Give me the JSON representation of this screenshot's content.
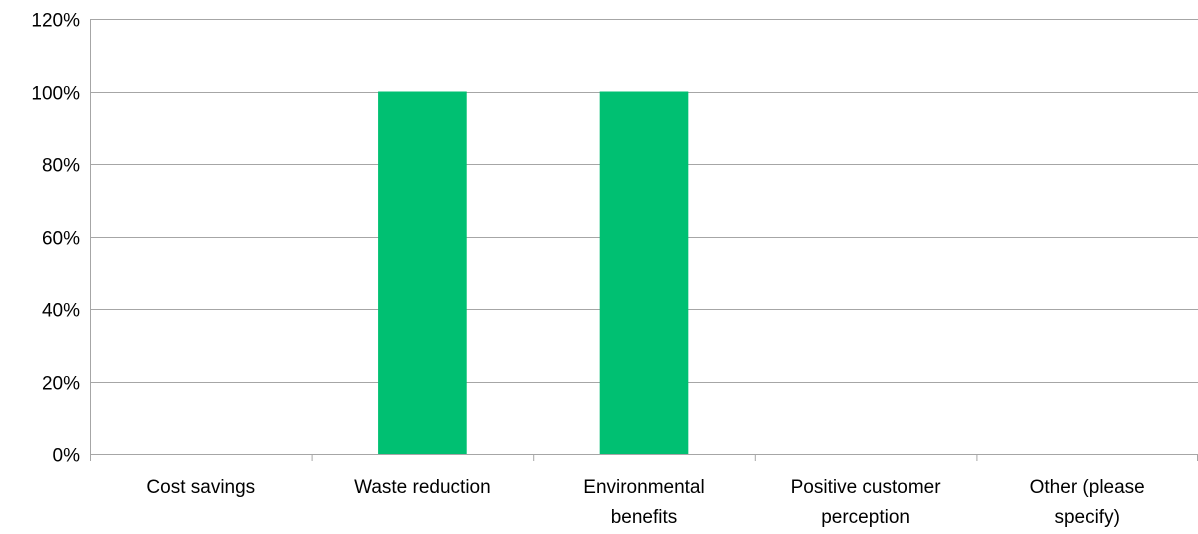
{
  "chart_data": {
    "type": "bar",
    "categories": [
      [
        "Cost savings"
      ],
      [
        "Waste reduction"
      ],
      [
        "Environmental",
        "benefits"
      ],
      [
        "Positive customer",
        "perception"
      ],
      [
        "Other (please",
        "specify)"
      ]
    ],
    "values": [
      0,
      100,
      100,
      0,
      0
    ],
    "ylim": [
      0,
      120
    ],
    "yticks": [
      "0%",
      "20%",
      "40%",
      "60%",
      "80%",
      "100%",
      "120%"
    ],
    "grid": true,
    "bar_color": "#00C072",
    "grid_color": "#A6A6A6",
    "axis_color": "#A6A6A6"
  }
}
